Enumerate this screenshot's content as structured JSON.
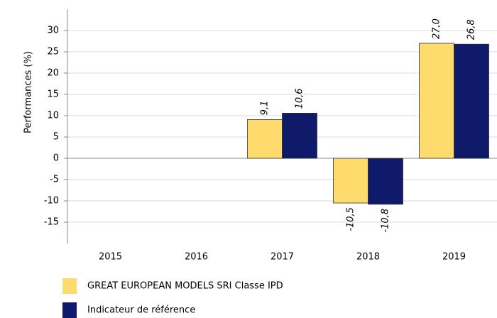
{
  "chart_data": {
    "type": "bar",
    "ylabel": "Performances (%)",
    "categories": [
      "2015",
      "2016",
      "2017",
      "2018",
      "2019"
    ],
    "series": [
      {
        "name": "GREAT EUROPEAN MODELS SRI Classe IPD",
        "color": "#ffdb6e",
        "values": [
          null,
          null,
          9.1,
          -10.5,
          27.0
        ],
        "value_labels": [
          null,
          null,
          "9,1",
          "-10,5",
          "27,0"
        ]
      },
      {
        "name": "Indicateur de référence",
        "color": "#0f1a6b",
        "values": [
          null,
          null,
          10.6,
          -10.8,
          26.8
        ],
        "value_labels": [
          null,
          null,
          "10,6",
          "-10,8",
          "26,8"
        ]
      }
    ],
    "ylim": [
      -20,
      35
    ],
    "yticks": [
      -15,
      -10,
      -5,
      0,
      5,
      10,
      15,
      20,
      25,
      30
    ],
    "grid": true
  }
}
